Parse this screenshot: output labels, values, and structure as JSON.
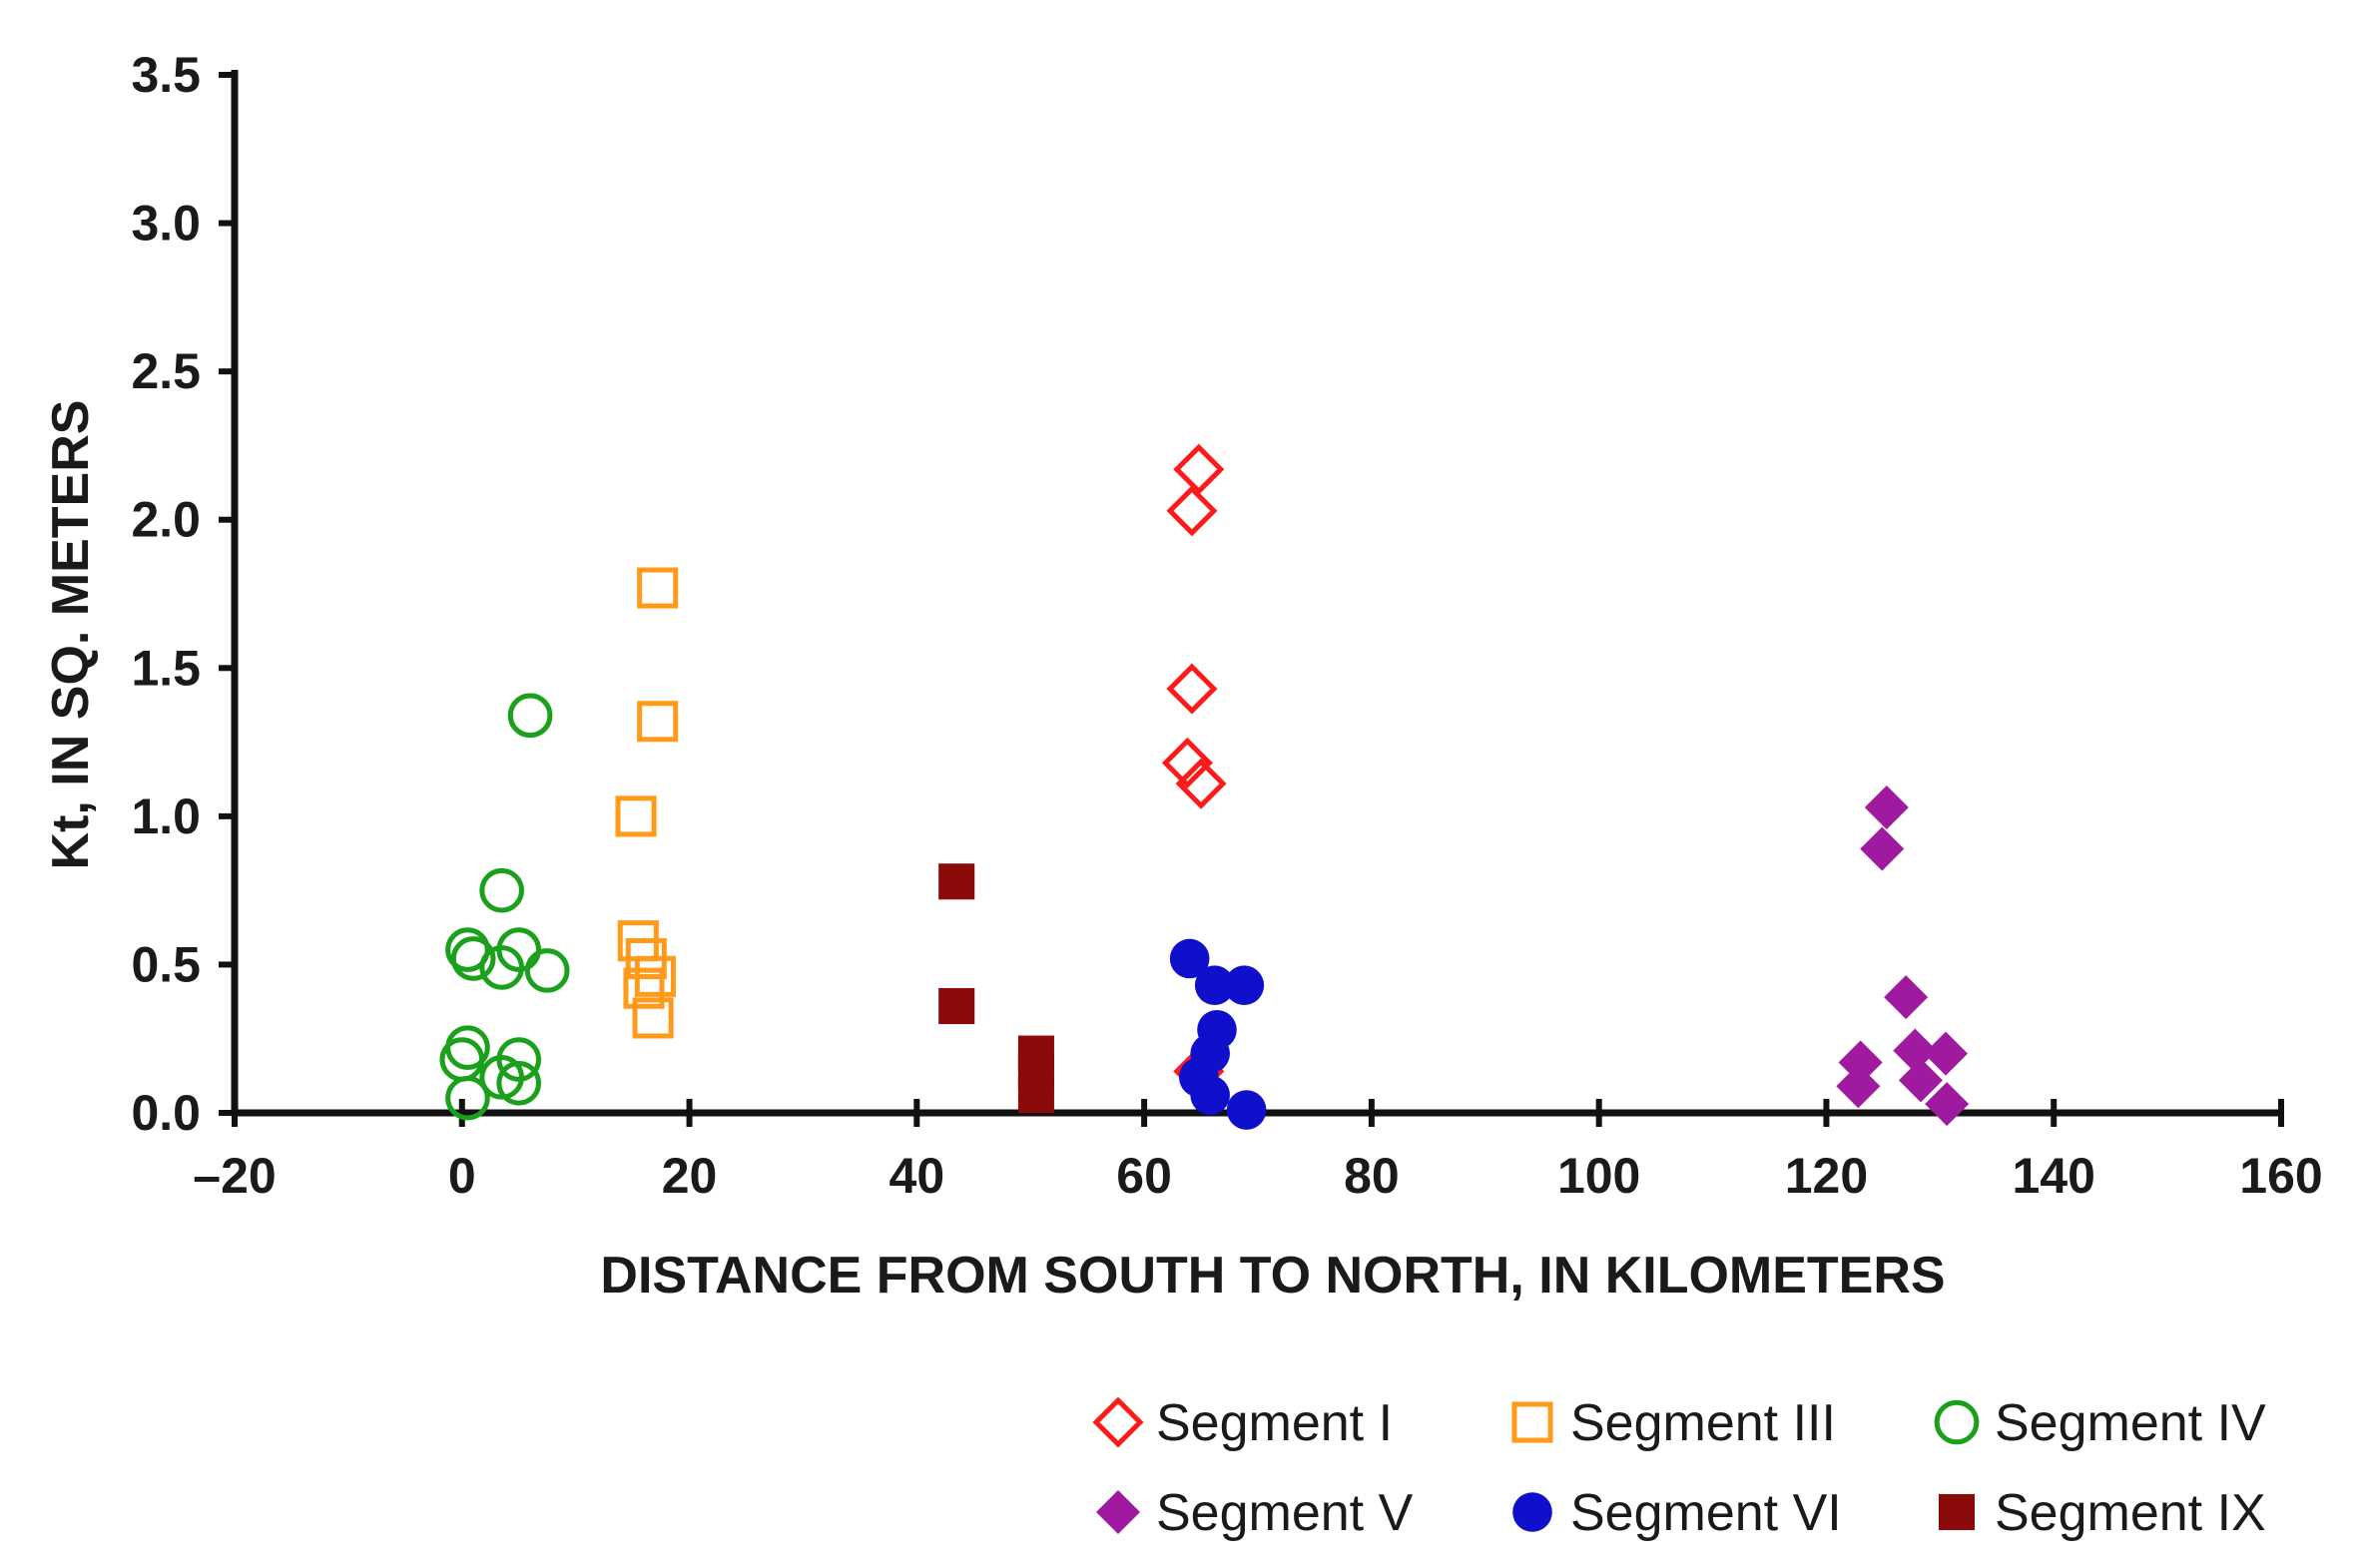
{
  "chart_data": {
    "type": "scatter",
    "title": "",
    "xlabel": "DISTANCE FROM SOUTH TO NORTH, IN KILOMETERS",
    "ylabel": "Kt, IN SQ. METERS",
    "xlim": [
      -20,
      160
    ],
    "ylim": [
      0,
      3.5
    ],
    "x_ticks": [
      -20,
      0,
      20,
      40,
      60,
      80,
      100,
      120,
      140,
      160
    ],
    "x_tick_labels": [
      "–20",
      "0",
      "20",
      "40",
      "60",
      "80",
      "100",
      "120",
      "140",
      "160"
    ],
    "y_ticks": [
      0,
      0.5,
      1.0,
      1.5,
      2.0,
      2.5,
      3.0,
      3.5
    ],
    "y_tick_labels": [
      "0.0",
      "0.5",
      "1.0",
      "1.5",
      "2.0",
      "2.5",
      "3.0",
      "3.5"
    ],
    "grid": false,
    "legend_position": "bottom-right",
    "series": [
      {
        "name": "Segment I",
        "marker": "diamond-open",
        "color": "#ff1a1a",
        "points": [
          [
            64.8,
            2.17
          ],
          [
            64.2,
            2.03
          ],
          [
            64.2,
            1.43
          ],
          [
            63.8,
            1.18
          ],
          [
            65.0,
            1.11
          ],
          [
            64.8,
            0.14
          ]
        ]
      },
      {
        "name": "Segment III",
        "marker": "square-open",
        "color": "#ff9a1a",
        "points": [
          [
            17.2,
            1.77
          ],
          [
            17.2,
            1.32
          ],
          [
            15.3,
            1.0
          ],
          [
            15.5,
            0.58
          ],
          [
            16.2,
            0.52
          ],
          [
            17.0,
            0.46
          ],
          [
            16.0,
            0.42
          ],
          [
            16.8,
            0.32
          ]
        ]
      },
      {
        "name": "Segment IV",
        "marker": "circle-open",
        "color": "#1aa01a",
        "points": [
          [
            6.0,
            1.34
          ],
          [
            3.5,
            0.75
          ],
          [
            0.5,
            0.55
          ],
          [
            1.0,
            0.52
          ],
          [
            3.5,
            0.49
          ],
          [
            5.0,
            0.55
          ],
          [
            7.5,
            0.48
          ],
          [
            0.5,
            0.22
          ],
          [
            0.0,
            0.18
          ],
          [
            5.0,
            0.18
          ],
          [
            3.5,
            0.12
          ],
          [
            5.0,
            0.1
          ],
          [
            0.5,
            0.05
          ]
        ]
      },
      {
        "name": "Segment V",
        "marker": "diamond-filled",
        "color": "#a01aa0",
        "points": [
          [
            125.3,
            1.03
          ],
          [
            124.9,
            0.89
          ],
          [
            127.0,
            0.39
          ],
          [
            123.0,
            0.17
          ],
          [
            127.8,
            0.21
          ],
          [
            130.5,
            0.2
          ],
          [
            122.8,
            0.09
          ],
          [
            128.3,
            0.11
          ],
          [
            130.6,
            0.03
          ]
        ]
      },
      {
        "name": "Segment VI",
        "marker": "circle-filled",
        "color": "#0f0fcc",
        "points": [
          [
            64.0,
            0.52
          ],
          [
            66.2,
            0.43
          ],
          [
            68.8,
            0.43
          ],
          [
            66.4,
            0.28
          ],
          [
            65.8,
            0.2
          ],
          [
            64.8,
            0.12
          ],
          [
            65.8,
            0.06
          ],
          [
            69.0,
            0.01
          ]
        ]
      },
      {
        "name": "Segment IX",
        "marker": "square-filled",
        "color": "#8b0a0a",
        "points": [
          [
            43.5,
            0.78
          ],
          [
            43.5,
            0.36
          ],
          [
            50.5,
            0.2
          ],
          [
            50.5,
            0.14
          ],
          [
            50.5,
            0.06
          ]
        ]
      }
    ]
  }
}
